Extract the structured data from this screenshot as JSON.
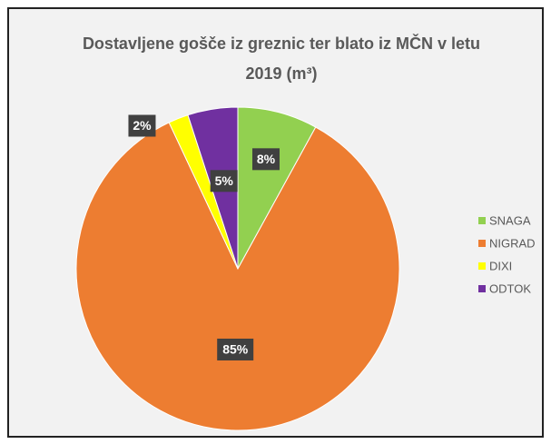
{
  "chart_data": {
    "type": "pie",
    "title": "Dostavljene gošče iz greznic ter blato iz MČN v letu 2019 (m³)",
    "categories": [
      "SNAGA",
      "NIGRAD",
      "DIXI",
      "ODTOK"
    ],
    "values": [
      8,
      85,
      2,
      5
    ],
    "value_labels": [
      "8%",
      "85%",
      "2%",
      "5%"
    ],
    "colors": [
      "#92d050",
      "#ed7d31",
      "#ffff00",
      "#7030a0"
    ],
    "legend": "right"
  }
}
